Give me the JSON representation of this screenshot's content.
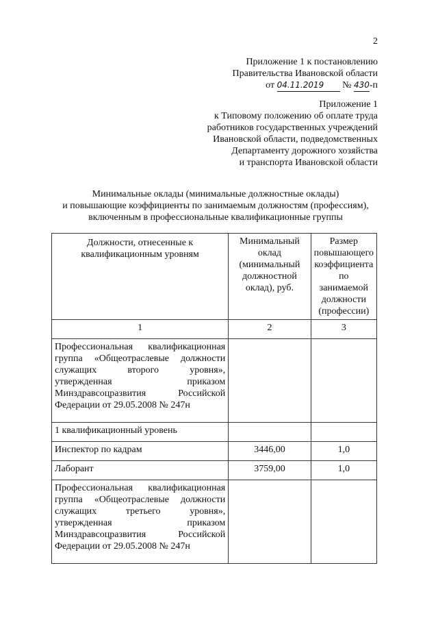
{
  "page_number": "2",
  "header": {
    "line1": "Приложение 1 к постановлению",
    "line2": "Правительства Ивановской области",
    "date_prefix": "от",
    "date": "04.11.2019",
    "number_prefix": "№",
    "number": "430",
    "number_suffix": "-п"
  },
  "appendix": {
    "lines": [
      "Приложение 1",
      "к Типовому положению об оплате труда",
      "работников государственных учреждений",
      "Ивановской области, подведомственных",
      "Департаменту дорожного хозяйства",
      "и транспорта Ивановской области"
    ]
  },
  "title": [
    "Минимальные оклады (минимальные должностные оклады)",
    "и повышающие коэффициенты по занимаемым должностям (профессиям),",
    "включенным в профессиональные квалификационные группы"
  ],
  "table": {
    "headers": [
      "Должности, отнесенные к квалификационным уровням",
      "Минимальный оклад (минимальный должностной оклад), руб.",
      "Размер повышающего коэффициента по занимаемой должности (профессии)"
    ],
    "col_numbers": [
      "1",
      "2",
      "3"
    ],
    "rows": [
      [
        "Профессиональная квалификационная группа «Общеотраслевые должности служащих второго уровня», утвержденная приказом Минздравсоцразвития Российской Федерации от 29.05.2008 № 247н",
        "",
        ""
      ],
      [
        "1 квалификационный уровень",
        "",
        ""
      ],
      [
        "Инспектор по кадрам",
        "3446,00",
        "1,0"
      ],
      [
        "Лаборант",
        "3759,00",
        "1,0"
      ],
      [
        "Профессиональная квалификационная группа «Общеотраслевые должности служащих третьего уровня», утвержденная приказом Минздравсоцразвития Российской Федерации от 29.05.2008 № 247н",
        "",
        ""
      ]
    ]
  }
}
